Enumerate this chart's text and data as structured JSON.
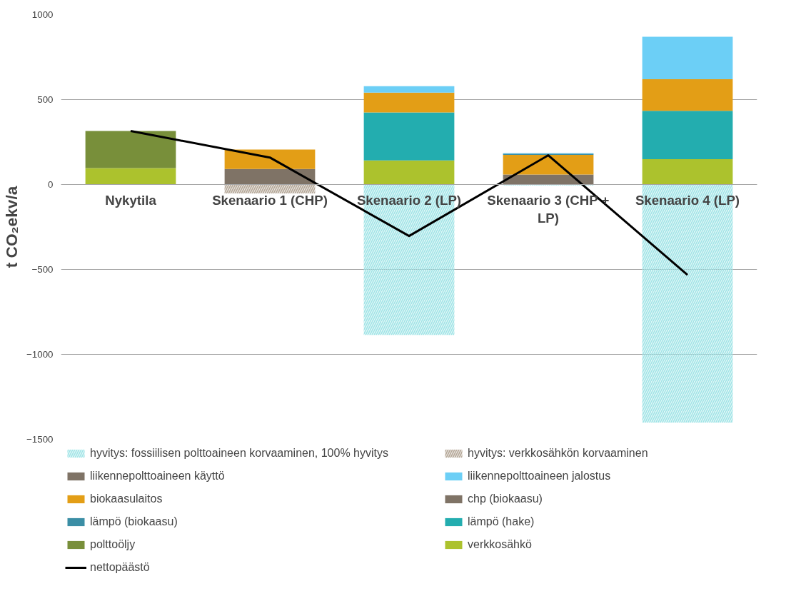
{
  "chart_data": {
    "type": "bar",
    "stacked": true,
    "ylabel": "t CO₂ekv/a",
    "categories": [
      "Nykytila",
      "Skenaario 1 (CHP)",
      "Skenaario 2 (LP)",
      "Skenaario 3 (CHP + LP)",
      "Skenaario 4 (LP)"
    ],
    "ylim": [
      -1500,
      1000
    ],
    "yticks": [
      -1500,
      -1000,
      -500,
      0,
      500,
      1000
    ],
    "grid": "y",
    "legend": "bottom",
    "series": [
      {
        "name": "verkkosähkö",
        "color": "#acc22d",
        "values": [
          97,
          null,
          142,
          null,
          149
        ]
      },
      {
        "name": "polttoöljy",
        "color": "#788f3a",
        "values": [
          218,
          null,
          null,
          null,
          null
        ]
      },
      {
        "name": "chp (biokaasu)",
        "color": "#7f7366",
        "values": [
          null,
          91,
          null,
          59,
          null
        ]
      },
      {
        "name": "lämpö (hake)",
        "color": "#23adaf",
        "values": [
          null,
          null,
          282,
          null,
          285
        ]
      },
      {
        "name": "biokaasulaitos",
        "color": "#e39e16",
        "values": [
          null,
          115,
          117,
          115,
          186
        ]
      },
      {
        "name": "lämpö (biokaasu)",
        "color": "#3b8ea5",
        "values": [
          null,
          null,
          null,
          8,
          null
        ]
      },
      {
        "name": "liikennepolttoaineen käyttö",
        "color": "#7f7366",
        "values": [
          null,
          null,
          null,
          null,
          null
        ]
      },
      {
        "name": "liikennepolttoaineen jalostus",
        "color": "#6ccff6",
        "values": [
          null,
          null,
          38,
          3,
          250
        ]
      },
      {
        "name": "hyvitys: fossiilisen polttoaineen korvaaminen, 100% hyvitys",
        "color": "#9ee3e6",
        "values": [
          null,
          null,
          -885,
          -5,
          -1401
        ]
      },
      {
        "name": "hyvitys: verkkosähkön korvaaminen",
        "color": "#b3a595",
        "values": [
          null,
          -52,
          null,
          null,
          null
        ]
      },
      {
        "name": "nettopäästö",
        "type": "line",
        "color": "#000000",
        "values": [
          315,
          159,
          -303,
          172,
          -532
        ]
      }
    ]
  }
}
